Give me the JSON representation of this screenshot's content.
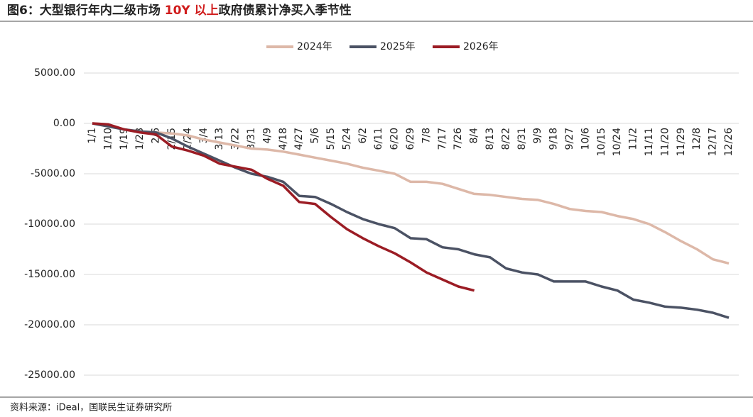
{
  "chart_data": {
    "type": "line",
    "title": {
      "prefix": "图6：大型银行年内二级市场 ",
      "highlight": "10Y 以上",
      "suffix": "政府债累计净买入季节性"
    },
    "source": "资料来源：iDeal，国联民生证券研究所",
    "categories": [
      "1/1",
      "1/10",
      "1/19",
      "1/28",
      "2/6",
      "2/15",
      "2/24",
      "3/4",
      "3/13",
      "3/22",
      "3/31",
      "4/9",
      "4/18",
      "4/27",
      "5/6",
      "5/15",
      "5/24",
      "6/2",
      "6/11",
      "6/20",
      "6/29",
      "7/8",
      "7/17",
      "7/26",
      "8/4",
      "8/13",
      "8/22",
      "8/31",
      "9/9",
      "9/18",
      "9/27",
      "10/6",
      "10/15",
      "10/24",
      "11/2",
      "11/11",
      "11/20",
      "11/29",
      "12/8",
      "12/17",
      "12/26"
    ],
    "series": [
      {
        "name": "2024年",
        "color": "#ddb8a8",
        "values": [
          0,
          -100,
          -600,
          -800,
          -900,
          -1000,
          -1200,
          -1600,
          -1900,
          -2200,
          -2500,
          -2600,
          -2800,
          -3100,
          -3400,
          -3700,
          -4000,
          -4400,
          -4700,
          -5000,
          -5800,
          -5800,
          -6000,
          -6500,
          -7000,
          -7100,
          -7300,
          -7500,
          -7600,
          -8000,
          -8500,
          -8700,
          -8800,
          -9200,
          -9500,
          -10000,
          -10800,
          -11700,
          -12500,
          -13500,
          -13900
        ]
      },
      {
        "name": "2025年",
        "color": "#4b5264",
        "values": [
          0,
          -300,
          -600,
          -800,
          -900,
          -1500,
          -2300,
          -3000,
          -3700,
          -4400,
          -5000,
          -5300,
          -5800,
          -7200,
          -7300,
          -8000,
          -8800,
          -9500,
          -10000,
          -10400,
          -11400,
          -11500,
          -12300,
          -12500,
          -13000,
          -13300,
          -14400,
          -14800,
          -15000,
          -15700,
          -15700,
          -15700,
          -16200,
          -16600,
          -17500,
          -17800,
          -18200,
          -18300,
          -18500,
          -18800,
          -19300
        ]
      },
      {
        "name": "2026年",
        "color": "#9b1c24",
        "values": [
          0,
          -100,
          -600,
          -900,
          -1100,
          -2300,
          -2700,
          -3200,
          -4000,
          -4300,
          -4600,
          -5500,
          -6200,
          -7800,
          -8000,
          -9300,
          -10500,
          -11400,
          -12200,
          -12900,
          -13800,
          -14800,
          -15500,
          -16200,
          -16600,
          null,
          null,
          null,
          null,
          null,
          null,
          null,
          null,
          null,
          null,
          null,
          null,
          null,
          null,
          null,
          null
        ]
      }
    ],
    "ylim": [
      -25000,
      5000
    ],
    "yticks": [
      {
        "value": 5000,
        "label": "5000.00"
      },
      {
        "value": 0,
        "label": "0.00"
      },
      {
        "value": -5000,
        "label": "-5000.00"
      },
      {
        "value": -10000,
        "label": "-10000.00"
      },
      {
        "value": -15000,
        "label": "-15000.00"
      },
      {
        "value": -20000,
        "label": "-20000.00"
      },
      {
        "value": -25000,
        "label": "-25000.00"
      }
    ],
    "grid": true,
    "legend": "top"
  }
}
